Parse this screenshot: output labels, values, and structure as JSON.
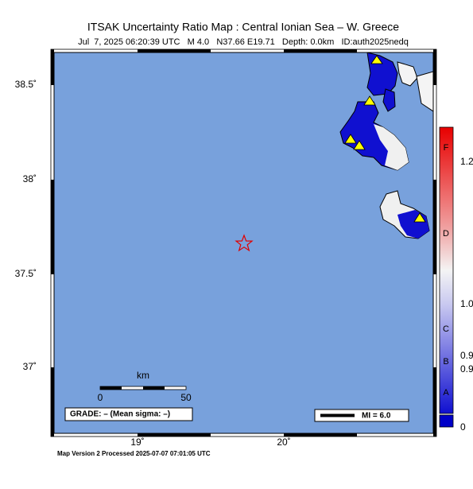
{
  "header": {
    "title": "ITSAK Uncertainty Ratio Map : Central Ionian Sea – W. Greece",
    "subtitle": "Jul  7, 2025 06:20:39 UTC   M 4.0   N37.66 E19.71   Depth: 0.0km   ID:auth2025nedq"
  },
  "map": {
    "lat_labels": [
      "38.5˚",
      "38˚",
      "37.5˚",
      "37˚"
    ],
    "lon_labels": [
      "19˚",
      "20˚"
    ],
    "scale_bar": {
      "unit": "km",
      "start": "0",
      "end": "50"
    },
    "grade": "GRADE: – (Mean sigma: –)",
    "legend": "MI = 6.0"
  },
  "colorbar": {
    "grades": [
      "F",
      "D",
      "C",
      "B",
      "A"
    ],
    "numbers": [
      "1.2",
      "1.0",
      "0.9",
      "0.9",
      "0"
    ]
  },
  "footer": "Map Version 2 Processed 2025-07-07 07:01:05 UTC"
}
